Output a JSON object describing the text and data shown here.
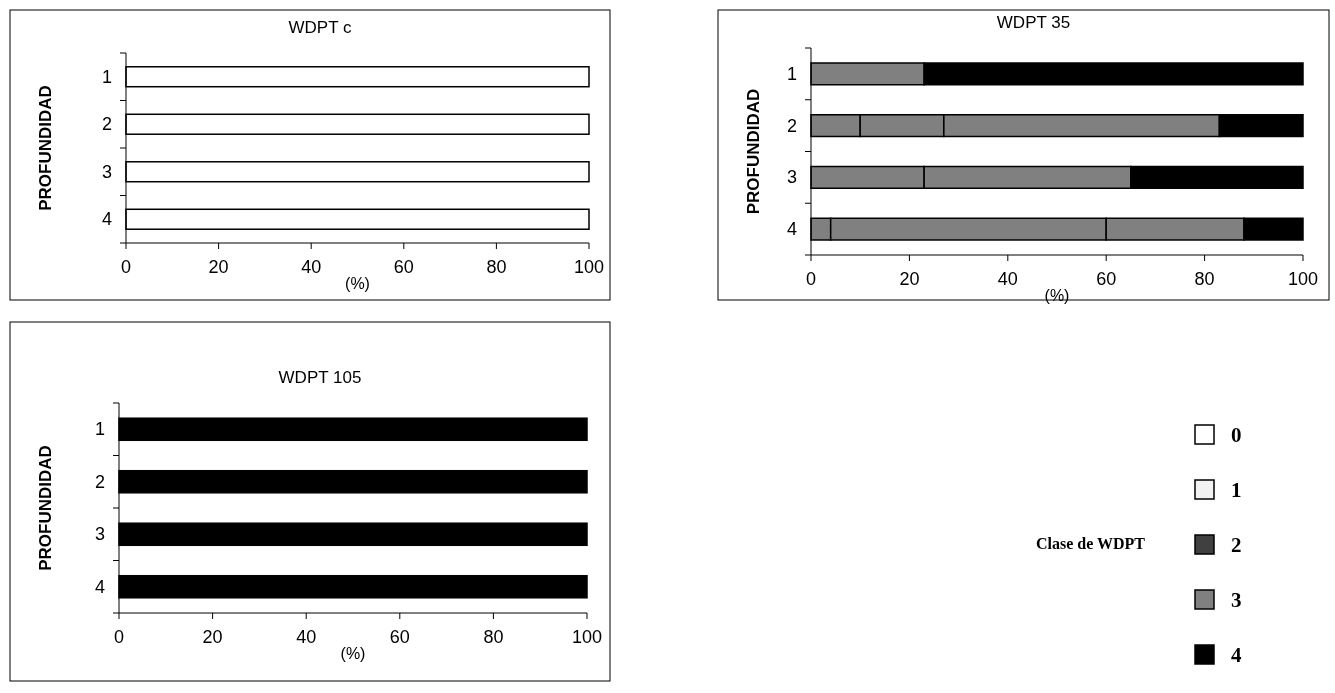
{
  "chart_data": [
    {
      "type": "bar",
      "orientation": "horizontal",
      "stacked": true,
      "title": "WDPT c",
      "xlabel": "(%)",
      "ylabel": "PROFUNDIDAD",
      "categories": [
        "1",
        "2",
        "3",
        "4"
      ],
      "xlim": [
        0,
        100
      ],
      "xticks": [
        0,
        20,
        40,
        60,
        80,
        100
      ],
      "series": [
        {
          "color": "#ffffff",
          "values": [
            100,
            100,
            100,
            100
          ]
        }
      ]
    },
    {
      "type": "bar",
      "orientation": "horizontal",
      "stacked": true,
      "title": "WDPT 35",
      "xlabel": "(%)",
      "ylabel": "PROFUNDIDAD",
      "categories": [
        "1",
        "2",
        "3",
        "4"
      ],
      "xlim": [
        0,
        100
      ],
      "xticks": [
        0,
        20,
        40,
        60,
        80,
        100
      ],
      "series": [
        {
          "color": "#808080",
          "values": [
            23,
            10,
            23,
            4
          ]
        },
        {
          "color": "#808080",
          "values": [
            0,
            17,
            42,
            56
          ]
        },
        {
          "color": "#808080",
          "values": [
            0,
            56,
            0,
            28
          ]
        },
        {
          "color": "#000000",
          "values": [
            77,
            17,
            35,
            12
          ]
        }
      ]
    },
    {
      "type": "bar",
      "orientation": "horizontal",
      "stacked": true,
      "title": "WDPT 105",
      "xlabel": "(%)",
      "ylabel": "PROFUNDIDAD",
      "categories": [
        "1",
        "2",
        "3",
        "4"
      ],
      "xlim": [
        0,
        100
      ],
      "xticks": [
        0,
        20,
        40,
        60,
        80,
        100
      ],
      "legend": "right",
      "legend_title": "Clase de WDPT",
      "series": [
        {
          "name": "0",
          "color": "#ffffff",
          "values": [
            0,
            0,
            0,
            0
          ]
        },
        {
          "name": "1",
          "color": "#f2f2f2",
          "values": [
            0,
            0,
            0,
            0
          ]
        },
        {
          "name": "2",
          "color": "#404040",
          "values": [
            0,
            0,
            0,
            0
          ]
        },
        {
          "name": "3",
          "color": "#808080",
          "values": [
            0,
            0,
            0,
            0
          ]
        },
        {
          "name": "4",
          "color": "#000000",
          "values": [
            100,
            100,
            100,
            100
          ]
        }
      ]
    }
  ]
}
